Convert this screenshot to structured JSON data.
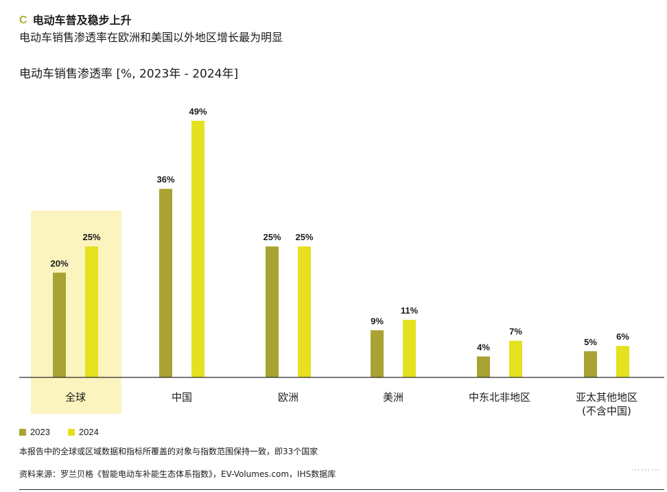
{
  "header": {
    "section_letter": "C",
    "section_title": "电动车普及稳步上升",
    "subtitle": "电动车销售渗透率在欧洲和美国以外地区增长最为明显"
  },
  "chart_data": {
    "type": "bar",
    "title": "电动车销售渗透率 [%, 2023年 - 2024年]",
    "categories": [
      "全球",
      "中国",
      "欧洲",
      "美洲",
      "中东北非地区",
      "亚太其他地区\n(不含中国)"
    ],
    "series": [
      {
        "name": "2023",
        "values": [
          20,
          36,
          25,
          9,
          4,
          5
        ],
        "labels": [
          "20%",
          "36%",
          "25%",
          "9%",
          "4%",
          "5%"
        ],
        "color": "#a8a332"
      },
      {
        "name": "2024",
        "values": [
          25,
          49,
          25,
          11,
          7,
          6
        ],
        "labels": [
          "25%",
          "49%",
          "25%",
          "11%",
          "7%",
          "6%"
        ],
        "color": "#e5e020"
      }
    ],
    "highlight_category": "全球",
    "highlight_color": "#fbf4be",
    "ylim": [
      0,
      52
    ],
    "grid": false,
    "legend_position": "bottom-left"
  },
  "legend": {
    "items": [
      "2023",
      "2024"
    ]
  },
  "footer": {
    "note": "本报告中的全球或区域数据和指标所覆盖的对象与指数范围保持一致，即33个国家",
    "source": "资料来源：罗兰贝格《智能电动车补能生态体系指数》，EV-Volumes.com，IHS数据库"
  },
  "watermark": "⋯⋯⋯"
}
